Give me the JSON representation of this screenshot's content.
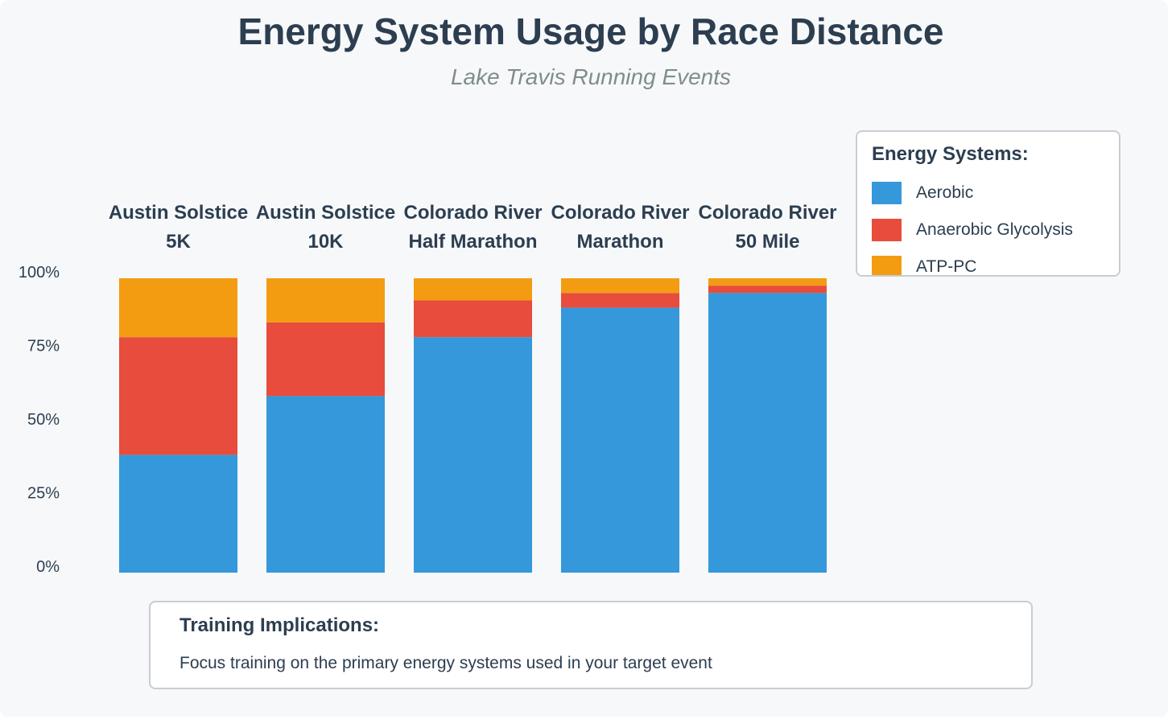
{
  "chart_data": {
    "type": "bar",
    "stacked": true,
    "title": "Energy System Usage by Race Distance",
    "subtitle": "Lake Travis Running Events",
    "categories": [
      [
        "Austin Solstice",
        "5K"
      ],
      [
        "Austin Solstice",
        "10K"
      ],
      [
        "Colorado River",
        "Half Marathon"
      ],
      [
        "Colorado River",
        "Marathon"
      ],
      [
        "Colorado River",
        "50 Mile"
      ]
    ],
    "series": [
      {
        "name": "Aerobic",
        "color": "#3498db",
        "values": [
          40,
          60,
          80,
          90,
          95
        ]
      },
      {
        "name": "Anaerobic Glycolysis",
        "color": "#e74c3c",
        "values": [
          40,
          25,
          12.5,
          5,
          2.5
        ]
      },
      {
        "name": "ATP-PC",
        "color": "#f39c12",
        "values": [
          20,
          15,
          7.5,
          5,
          2.5
        ]
      }
    ],
    "ylim": [
      0,
      100
    ],
    "yticks": [
      0,
      25,
      50,
      75,
      100
    ],
    "ytick_labels": [
      "0%",
      "25%",
      "50%",
      "75%",
      "100%"
    ],
    "xlabel": "",
    "ylabel": "",
    "grid": false,
    "legend": {
      "title": "Energy Systems:",
      "placement": "top-right"
    }
  },
  "notes": {
    "title": "Training Implications:",
    "text": "Focus training on the primary energy systems used in your target event"
  }
}
